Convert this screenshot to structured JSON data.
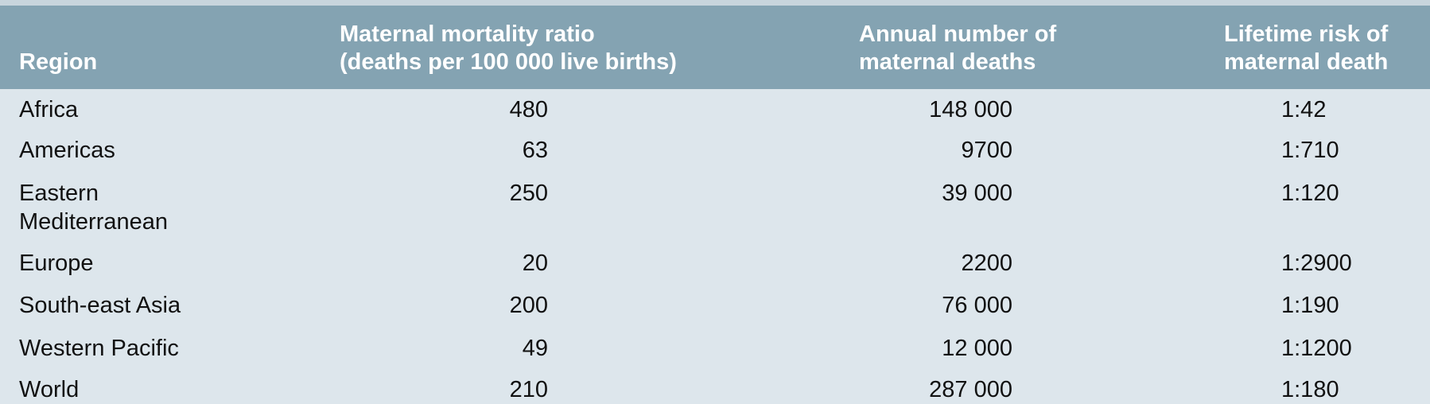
{
  "table": {
    "header": [
      [
        "Region"
      ],
      [
        "Maternal mortality ratio",
        "(deaths per 100 000 live births)"
      ],
      [
        "Annual number of",
        "maternal deaths"
      ],
      [
        "Lifetime risk of",
        "maternal death"
      ]
    ],
    "rows": [
      [
        "Africa",
        "480",
        "148 000",
        "1:42"
      ],
      [
        "Americas",
        "63",
        "9700",
        "1:710"
      ],
      [
        "Eastern Mediterranean",
        "250",
        "39 000",
        "1:120"
      ],
      [
        "Europe",
        "20",
        "2200",
        "1:2900"
      ],
      [
        "South-east Asia",
        "200",
        "76 000",
        "1:190"
      ],
      [
        "Western Pacific",
        "49",
        "12 000",
        "1:1200"
      ],
      [
        "World",
        "210",
        "287 000",
        "1:180"
      ]
    ]
  }
}
